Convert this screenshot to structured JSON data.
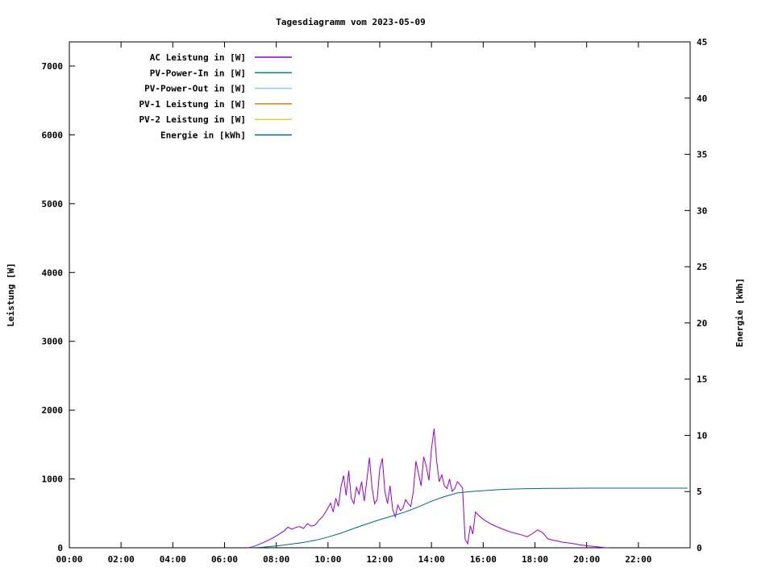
{
  "page": {
    "background": "#ffffff"
  },
  "chart_data": {
    "type": "line",
    "title": "Tagesdiagramm vom 2023-05-09",
    "grid": false,
    "legend_position": "top-left",
    "x_axis": {
      "range": [
        0,
        24
      ],
      "tick_hours": [
        0,
        2,
        4,
        6,
        8,
        10,
        12,
        14,
        16,
        18,
        20,
        22
      ],
      "tick_labels": [
        "00:00",
        "02:00",
        "04:00",
        "06:00",
        "08:00",
        "10:00",
        "12:00",
        "14:00",
        "16:00",
        "18:00",
        "20:00",
        "22:00"
      ]
    },
    "y_left": {
      "label": "Leistung [W]",
      "range": [
        0,
        7351
      ],
      "tick_values": [
        0,
        1000,
        2000,
        3000,
        4000,
        5000,
        6000,
        7000
      ],
      "tick_labels": [
        "0",
        "1000",
        "2000",
        "3000",
        "4000",
        "5000",
        "6000",
        "7000"
      ]
    },
    "y_right": {
      "label": "Energie [kWh]",
      "range": [
        0,
        45
      ],
      "tick_values": [
        0,
        5,
        10,
        15,
        20,
        25,
        30,
        35,
        40,
        45
      ],
      "tick_labels": [
        "0",
        "5",
        "10",
        "15",
        "20",
        "25",
        "30",
        "35",
        "40",
        "45"
      ]
    },
    "legend": [
      {
        "label": "AC Leistung in [W]",
        "color": "#9400d3"
      },
      {
        "label": "PV-Power-In in [W]",
        "color": "#008b8b"
      },
      {
        "label": "PV-Power-Out in [W]",
        "color": "#87ceeb"
      },
      {
        "label": "PV-1 Leistung in [W]",
        "color": "#cc8800"
      },
      {
        "label": "PV-2 Leistung in [W]",
        "color": "#e6d22e"
      },
      {
        "label": "Energie in [kWh]",
        "color": "#00697b"
      }
    ],
    "series": [
      {
        "name": "AC Leistung in [W]",
        "axis": "left",
        "color": "#9400d3",
        "points": [
          [
            6.9,
            0
          ],
          [
            7.1,
            15
          ],
          [
            7.3,
            45
          ],
          [
            7.5,
            75
          ],
          [
            7.7,
            110
          ],
          [
            7.9,
            150
          ],
          [
            8.1,
            195
          ],
          [
            8.3,
            245
          ],
          [
            8.45,
            300
          ],
          [
            8.6,
            270
          ],
          [
            8.75,
            295
          ],
          [
            8.9,
            310
          ],
          [
            9.05,
            280
          ],
          [
            9.2,
            350
          ],
          [
            9.35,
            315
          ],
          [
            9.5,
            330
          ],
          [
            9.65,
            400
          ],
          [
            9.8,
            455
          ],
          [
            9.95,
            545
          ],
          [
            10.1,
            650
          ],
          [
            10.2,
            520
          ],
          [
            10.3,
            720
          ],
          [
            10.4,
            600
          ],
          [
            10.5,
            880
          ],
          [
            10.6,
            1050
          ],
          [
            10.7,
            760
          ],
          [
            10.8,
            1120
          ],
          [
            10.9,
            720
          ],
          [
            11.0,
            640
          ],
          [
            11.1,
            880
          ],
          [
            11.2,
            780
          ],
          [
            11.3,
            960
          ],
          [
            11.4,
            680
          ],
          [
            11.5,
            980
          ],
          [
            11.6,
            1310
          ],
          [
            11.7,
            880
          ],
          [
            11.8,
            640
          ],
          [
            11.9,
            700
          ],
          [
            12.0,
            1140
          ],
          [
            12.1,
            1300
          ],
          [
            12.2,
            820
          ],
          [
            12.3,
            640
          ],
          [
            12.4,
            900
          ],
          [
            12.5,
            560
          ],
          [
            12.6,
            450
          ],
          [
            12.7,
            620
          ],
          [
            12.8,
            540
          ],
          [
            12.9,
            580
          ],
          [
            13.0,
            700
          ],
          [
            13.1,
            640
          ],
          [
            13.2,
            600
          ],
          [
            13.3,
            820
          ],
          [
            13.4,
            1260
          ],
          [
            13.5,
            1080
          ],
          [
            13.6,
            900
          ],
          [
            13.7,
            1320
          ],
          [
            13.8,
            1180
          ],
          [
            13.9,
            980
          ],
          [
            14.0,
            1440
          ],
          [
            14.1,
            1730
          ],
          [
            14.2,
            1260
          ],
          [
            14.3,
            960
          ],
          [
            14.4,
            1060
          ],
          [
            14.5,
            900
          ],
          [
            14.6,
            860
          ],
          [
            14.7,
            1000
          ],
          [
            14.8,
            820
          ],
          [
            14.9,
            860
          ],
          [
            15.0,
            960
          ],
          [
            15.1,
            920
          ],
          [
            15.2,
            870
          ],
          [
            15.3,
            120
          ],
          [
            15.4,
            60
          ],
          [
            15.5,
            320
          ],
          [
            15.6,
            200
          ],
          [
            15.7,
            520
          ],
          [
            15.8,
            480
          ],
          [
            15.95,
            430
          ],
          [
            16.1,
            390
          ],
          [
            16.3,
            345
          ],
          [
            16.5,
            310
          ],
          [
            16.7,
            280
          ],
          [
            16.9,
            250
          ],
          [
            17.1,
            225
          ],
          [
            17.3,
            205
          ],
          [
            17.5,
            185
          ],
          [
            17.7,
            160
          ],
          [
            17.9,
            205
          ],
          [
            18.1,
            260
          ],
          [
            18.3,
            220
          ],
          [
            18.5,
            130
          ],
          [
            18.7,
            110
          ],
          [
            18.9,
            95
          ],
          [
            19.1,
            80
          ],
          [
            19.3,
            70
          ],
          [
            19.5,
            60
          ],
          [
            19.7,
            45
          ],
          [
            19.9,
            35
          ],
          [
            20.1,
            25
          ],
          [
            20.3,
            18
          ],
          [
            20.5,
            10
          ],
          [
            20.7,
            4
          ],
          [
            20.8,
            0
          ]
        ]
      },
      {
        "name": "Energie in [kWh]",
        "axis": "right",
        "color": "#00697b",
        "points": [
          [
            7.0,
            0
          ],
          [
            7.5,
            0.06
          ],
          [
            8.0,
            0.16
          ],
          [
            8.5,
            0.3
          ],
          [
            9.0,
            0.46
          ],
          [
            9.5,
            0.66
          ],
          [
            10.0,
            0.95
          ],
          [
            10.5,
            1.3
          ],
          [
            11.0,
            1.72
          ],
          [
            11.5,
            2.12
          ],
          [
            12.0,
            2.5
          ],
          [
            12.5,
            2.84
          ],
          [
            13.0,
            3.2
          ],
          [
            13.5,
            3.64
          ],
          [
            14.0,
            4.14
          ],
          [
            14.5,
            4.55
          ],
          [
            15.0,
            4.88
          ],
          [
            15.5,
            5.0
          ],
          [
            16.0,
            5.08
          ],
          [
            16.5,
            5.16
          ],
          [
            17.0,
            5.21
          ],
          [
            17.5,
            5.25
          ],
          [
            18.0,
            5.27
          ],
          [
            18.5,
            5.28
          ],
          [
            19.0,
            5.29
          ],
          [
            20.0,
            5.3
          ],
          [
            22.0,
            5.3
          ],
          [
            23.9,
            5.3
          ]
        ]
      }
    ],
    "readings": {
      "ac_peak_w": 1730,
      "ac_peak_time": "14:05",
      "total_energy_kwh": 5.3
    }
  }
}
